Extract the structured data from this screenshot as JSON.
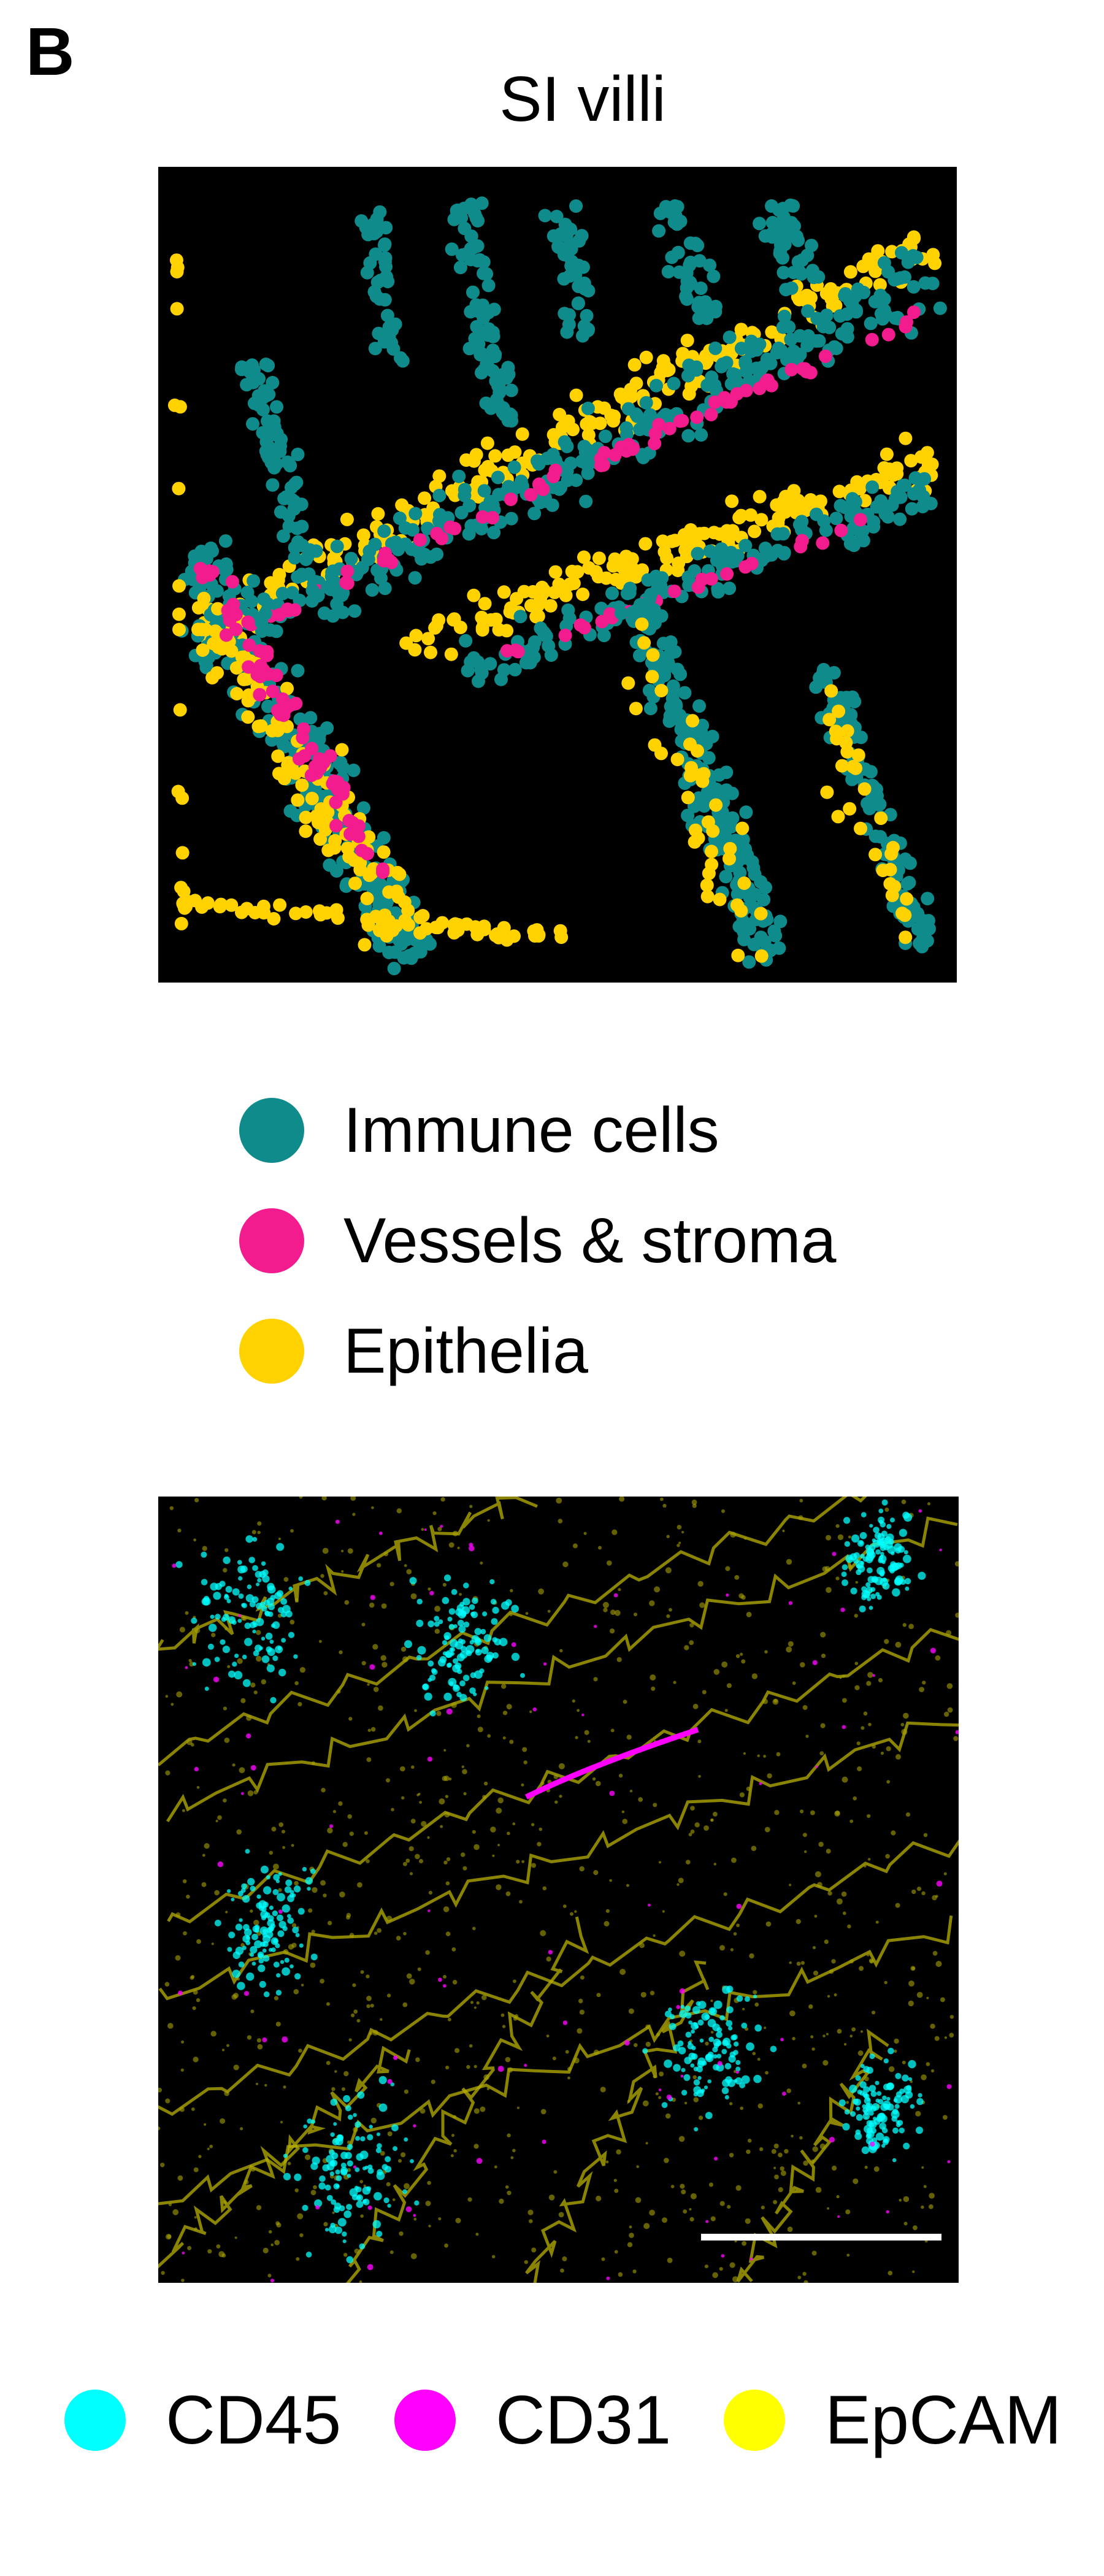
{
  "panel": {
    "letter": "B",
    "title": "SI villi"
  },
  "colors": {
    "immune": "#0f8b8b",
    "vessels": "#f21c8e",
    "epithelia": "#ffd200",
    "cd45": "#00ffff",
    "cd31": "#ff00ff",
    "epcam": "#ffff00",
    "scalebar": "#ffffff"
  },
  "scatter_legend": [
    {
      "label": "Immune cells",
      "color_key": "immune"
    },
    {
      "label": "Vessels & stroma",
      "color_key": "vessels"
    },
    {
      "label": "Epithelia",
      "color_key": "epithelia"
    }
  ],
  "marker_legend": [
    {
      "label": "CD45",
      "color_key": "cd45"
    },
    {
      "label": "CD31",
      "color_key": "cd31"
    },
    {
      "label": "EpCAM",
      "color_key": "epcam"
    }
  ]
}
